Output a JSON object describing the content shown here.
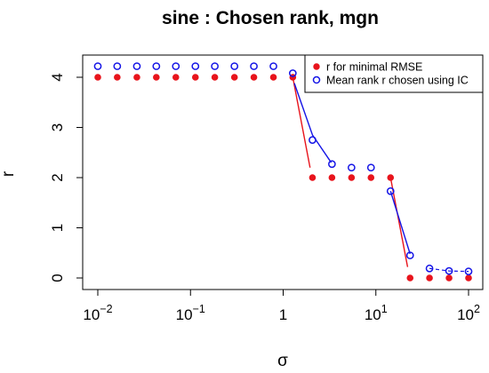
{
  "chart_data": {
    "type": "scatter",
    "title": "sine :  Chosen rank, mgn",
    "xlabel": "σ",
    "ylabel": "r",
    "xscale": "log10",
    "xlim": [
      0.01,
      100
    ],
    "ylim": [
      0,
      4.2
    ],
    "x_ticks": [
      {
        "value": 0.01,
        "mantissa": "10",
        "exponent": "−2"
      },
      {
        "value": 0.1,
        "mantissa": "10",
        "exponent": "−1"
      },
      {
        "value": 1,
        "mantissa": "1",
        "exponent": ""
      },
      {
        "value": 10,
        "mantissa": "10",
        "exponent": "1"
      },
      {
        "value": 100,
        "mantissa": "10",
        "exponent": "2"
      }
    ],
    "y_ticks": [
      "0",
      "1",
      "2",
      "3",
      "4"
    ],
    "legend_position": "top-right",
    "grid": false,
    "series": [
      {
        "name": "r for minimal RMSE",
        "color": "#e8141c",
        "marker": "filled-circle",
        "x": [
          0.01,
          0.0162,
          0.0264,
          0.0428,
          0.0695,
          0.113,
          0.183,
          0.298,
          0.483,
          0.785,
          1.27,
          2.07,
          3.36,
          5.46,
          8.86,
          14.4,
          23.4,
          37.9,
          61.6,
          100
        ],
        "values": [
          4,
          4,
          4,
          4,
          4,
          4,
          4,
          4,
          4,
          4,
          4,
          2,
          2,
          2,
          2,
          2,
          0,
          0,
          0,
          0
        ]
      },
      {
        "name": "Mean rank r chosen using IC",
        "color": "#1414e6",
        "marker": "open-circle",
        "x": [
          0.01,
          0.0162,
          0.0264,
          0.0428,
          0.0695,
          0.113,
          0.183,
          0.298,
          0.483,
          0.785,
          1.27,
          2.07,
          3.36,
          5.46,
          8.86,
          14.4,
          23.4,
          37.9,
          61.6,
          100
        ],
        "values": [
          4.22,
          4.22,
          4.22,
          4.22,
          4.22,
          4.22,
          4.22,
          4.22,
          4.22,
          4.22,
          4.08,
          2.75,
          2.27,
          2.2,
          2.2,
          1.73,
          0.45,
          0.19,
          0.14,
          0.13
        ]
      }
    ]
  }
}
